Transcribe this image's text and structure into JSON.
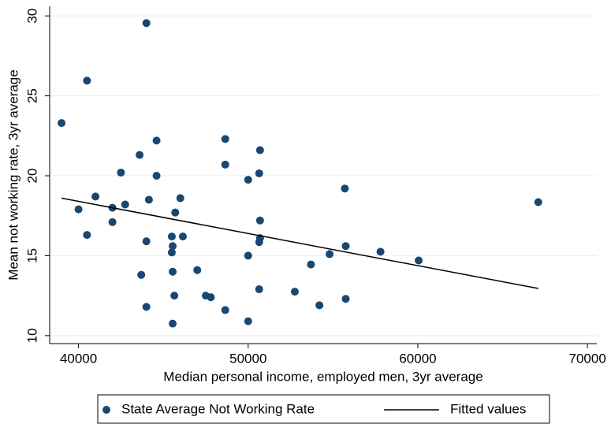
{
  "chart_data": {
    "type": "scatter",
    "x_label": "Median personal income, employed men, 3yr average",
    "y_label": "Mean not working rate, 3yr average",
    "xlim": [
      38300,
      70550
    ],
    "ylim": [
      9.5,
      30.6
    ],
    "xticks": [
      40000,
      50000,
      60000,
      70000
    ],
    "yticks": [
      10,
      15,
      20,
      25,
      30
    ],
    "grid": true,
    "series": [
      {
        "name": "State Average Not Working Rate",
        "type": "scatter",
        "color": "#1a476f",
        "x": [
          39000,
          40500,
          40000,
          40500,
          41000,
          42000,
          42000,
          42500,
          42750,
          43600,
          43700,
          44000,
          44000,
          44000,
          44150,
          44600,
          44600,
          45500,
          45550,
          45500,
          45550,
          45650,
          45550,
          45700,
          46000,
          46150,
          47000,
          47500,
          47800,
          48650,
          48650,
          48650,
          50000,
          50000,
          50000,
          50700,
          50650,
          50700,
          50700,
          50650,
          50650,
          52750,
          53700,
          54200,
          54800,
          55700,
          55750,
          55750,
          57800,
          60050,
          67100
        ],
        "values": [
          23.3,
          25.95,
          17.9,
          16.3,
          18.7,
          18.0,
          17.1,
          20.2,
          18.2,
          21.3,
          13.8,
          29.55,
          15.9,
          11.8,
          18.5,
          22.2,
          20.0,
          16.2,
          15.6,
          15.2,
          14.0,
          12.5,
          10.75,
          17.7,
          18.6,
          16.2,
          14.1,
          12.5,
          12.4,
          22.3,
          20.7,
          11.6,
          19.75,
          15.0,
          10.9,
          21.6,
          20.15,
          17.2,
          16.1,
          15.85,
          12.9,
          12.75,
          14.45,
          11.9,
          15.1,
          19.2,
          15.6,
          12.3,
          15.25,
          14.7,
          18.35
        ]
      },
      {
        "name": "Fitted values",
        "type": "line",
        "color": "#000000",
        "x": [
          39000,
          67100
        ],
        "values": [
          18.6,
          12.95
        ]
      }
    ]
  }
}
